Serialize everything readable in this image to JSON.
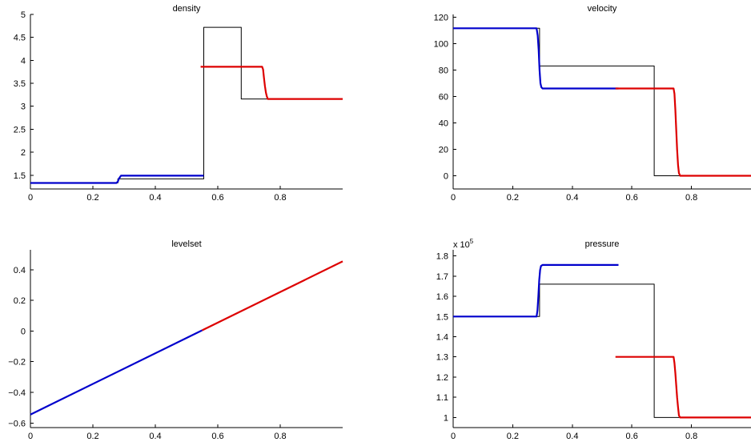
{
  "chart_data": [
    {
      "type": "line",
      "title": "density",
      "xlim": [
        0,
        1
      ],
      "ylim": [
        1.2,
        5
      ],
      "xticks": [
        0,
        0.2,
        0.4,
        0.6,
        0.8
      ],
      "xtick_labels": [
        "0",
        "0.2",
        "0.4",
        "0.6",
        "0.8"
      ],
      "yticks": [
        1.5,
        2,
        2.5,
        3,
        3.5,
        4,
        4.5,
        5
      ],
      "ytick_labels": [
        "1.5",
        "2",
        "2.5",
        "3",
        "3.5",
        "4",
        "4.5",
        "5"
      ],
      "series": [
        {
          "style": "line",
          "color": "#000000",
          "x": [
            0,
            0.28,
            0.28,
            0.555,
            0.555,
            0.675,
            0.675,
            1.0
          ],
          "y": [
            1.33,
            1.33,
            1.42,
            1.42,
            4.72,
            4.72,
            3.16,
            3.16
          ]
        },
        {
          "style": "line",
          "color": "#0000cc",
          "x": [
            0,
            0.275,
            0.28,
            0.283,
            0.287,
            0.29,
            0.555
          ],
          "y": [
            1.33,
            1.33,
            1.36,
            1.42,
            1.46,
            1.49,
            1.49
          ]
        },
        {
          "style": "line",
          "color": "#dd0000",
          "x": [
            0.545,
            0.742,
            0.745,
            0.748,
            0.751,
            0.754,
            0.757,
            0.76,
            1.0
          ],
          "y": [
            3.86,
            3.86,
            3.8,
            3.62,
            3.44,
            3.3,
            3.22,
            3.16,
            3.16
          ]
        }
      ]
    },
    {
      "type": "line",
      "title": "velocity",
      "xlim": [
        0,
        1
      ],
      "ylim": [
        -10,
        122
      ],
      "xticks": [
        0,
        0.2,
        0.4,
        0.6,
        0.8
      ],
      "xtick_labels": [
        "0",
        "0.2",
        "0.4",
        "0.6",
        "0.8"
      ],
      "yticks": [
        0,
        20,
        40,
        60,
        80,
        100,
        120
      ],
      "ytick_labels": [
        "0",
        "20",
        "40",
        "60",
        "80",
        "100",
        "120"
      ],
      "series": [
        {
          "style": "line",
          "color": "#000000",
          "x": [
            0,
            0.29,
            0.29,
            0.675,
            0.675,
            1.0
          ],
          "y": [
            111.5,
            111.5,
            83,
            83,
            0,
            0
          ]
        },
        {
          "style": "line",
          "color": "#0000cc",
          "x": [
            0,
            0.28,
            0.284,
            0.287,
            0.29,
            0.293,
            0.296,
            0.3,
            0.555
          ],
          "y": [
            111.5,
            111.5,
            106,
            95,
            80,
            70,
            67,
            66,
            66
          ]
        },
        {
          "style": "line",
          "color": "#dd0000",
          "x": [
            0.545,
            0.74,
            0.743,
            0.746,
            0.749,
            0.752,
            0.755,
            0.758,
            0.762,
            1.0
          ],
          "y": [
            66,
            66,
            62,
            50,
            35,
            20,
            8,
            2,
            0,
            0
          ]
        }
      ]
    },
    {
      "type": "line",
      "title": "levelset",
      "xlim": [
        0,
        1
      ],
      "ylim": [
        -0.63,
        0.53
      ],
      "xticks": [
        0,
        0.2,
        0.4,
        0.6,
        0.8
      ],
      "xtick_labels": [
        "0",
        "0.2",
        "0.4",
        "0.6",
        "0.8"
      ],
      "yticks": [
        -0.6,
        -0.4,
        -0.2,
        0,
        0.2,
        0.4
      ],
      "ytick_labels": [
        "−0.6",
        "−0.4",
        "−0.2",
        "0",
        "0.2",
        "0.4"
      ],
      "series": [
        {
          "style": "line",
          "color": "#0000cc",
          "x": [
            0,
            0.55
          ],
          "y": [
            -0.545,
            0.005
          ]
        },
        {
          "style": "line",
          "color": "#dd0000",
          "x": [
            0.55,
            1.0
          ],
          "y": [
            0.005,
            0.455
          ]
        }
      ]
    },
    {
      "type": "line",
      "title": "pressure",
      "exponent_label": "x 10",
      "exponent_power": "5",
      "xlim": [
        0,
        1
      ],
      "ylim": [
        0.95,
        1.83
      ],
      "xticks": [
        0,
        0.2,
        0.4,
        0.6,
        0.8
      ],
      "xtick_labels": [
        "0",
        "0.2",
        "0.4",
        "0.6",
        "0.8"
      ],
      "yticks": [
        1,
        1.1,
        1.2,
        1.3,
        1.4,
        1.5,
        1.6,
        1.7,
        1.8
      ],
      "ytick_labels": [
        "1",
        "1.1",
        "1.2",
        "1.3",
        "1.4",
        "1.5",
        "1.6",
        "1.7",
        "1.8"
      ],
      "series": [
        {
          "style": "line",
          "color": "#000000",
          "x": [
            0,
            0.29,
            0.29,
            0.675,
            0.675,
            1.0
          ],
          "y": [
            1.5,
            1.5,
            1.66,
            1.66,
            1.0,
            1.0
          ]
        },
        {
          "style": "line",
          "color": "#0000cc",
          "x": [
            0,
            0.28,
            0.283,
            0.286,
            0.289,
            0.292,
            0.295,
            0.3,
            0.555
          ],
          "y": [
            1.5,
            1.5,
            1.53,
            1.6,
            1.68,
            1.73,
            1.75,
            1.755,
            1.755
          ]
        },
        {
          "style": "line",
          "color": "#dd0000",
          "x": [
            0.545,
            0.74,
            0.743,
            0.746,
            0.749,
            0.752,
            0.755,
            0.758,
            0.762,
            1.0
          ],
          "y": [
            1.3,
            1.3,
            1.27,
            1.22,
            1.16,
            1.1,
            1.05,
            1.01,
            1.0,
            1.0
          ]
        }
      ]
    }
  ]
}
